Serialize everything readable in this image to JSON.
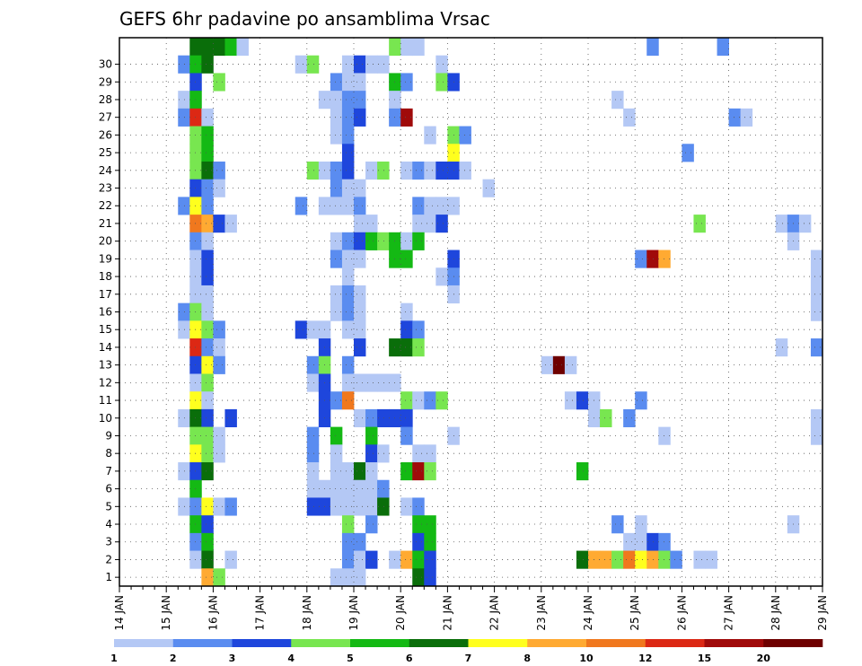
{
  "chart_data": {
    "type": "heatmap",
    "title": "GEFS 6hr padavine po ansamblima Vrsac",
    "xlabel": "",
    "ylabel": "",
    "x_unit": "6-hour step",
    "x_range": [
      0,
      60
    ],
    "x_ticks": [
      {
        "label": "14 JAN",
        "x": 0
      },
      {
        "label": "15 JAN",
        "x": 4
      },
      {
        "label": "16 JAN",
        "x": 8
      },
      {
        "label": "17 JAN",
        "x": 12
      },
      {
        "label": "18 JAN",
        "x": 16
      },
      {
        "label": "19 JAN",
        "x": 20
      },
      {
        "label": "20 JAN",
        "x": 24
      },
      {
        "label": "21 JAN",
        "x": 28
      },
      {
        "label": "22 JAN",
        "x": 32
      },
      {
        "label": "23 JAN",
        "x": 36
      },
      {
        "label": "24 JAN",
        "x": 40
      },
      {
        "label": "25 JAN",
        "x": 44
      },
      {
        "label": "26 JAN",
        "x": 48
      },
      {
        "label": "27 JAN",
        "x": 52
      },
      {
        "label": "28 JAN",
        "x": 56
      },
      {
        "label": "29 JAN",
        "x": 60
      }
    ],
    "y_ticks": [
      "1",
      "2",
      "3",
      "4",
      "5",
      "6",
      "7",
      "8",
      "9",
      "10",
      "11",
      "12",
      "13",
      "14",
      "15",
      "16",
      "17",
      "18",
      "19",
      "20",
      "21",
      "22",
      "23",
      "24",
      "25",
      "26",
      "27",
      "28",
      "29",
      "30"
    ],
    "grid": true,
    "legend": "bottom",
    "colorbar": {
      "levels": [
        "1",
        "2",
        "3",
        "4",
        "5",
        "6",
        "7",
        "8",
        "10",
        "12",
        "15",
        "20"
      ],
      "colors": [
        "#b4c8f5",
        "#5a8cf0",
        "#1e46dc",
        "#78e650",
        "#14b914",
        "#0a6e0a",
        "#ffff1e",
        "#ffaa32",
        "#f0781e",
        "#dc2814",
        "#a00a0a",
        "#6e0000"
      ]
    },
    "cells": [
      [
        6,
        30,
        5
      ],
      [
        7,
        30,
        5
      ],
      [
        8,
        30,
        5
      ],
      [
        9,
        30,
        4
      ],
      [
        10,
        30,
        0
      ],
      [
        23,
        30,
        3
      ],
      [
        24,
        30,
        0
      ],
      [
        25,
        30,
        0
      ],
      [
        45,
        30,
        1
      ],
      [
        51,
        30,
        1
      ],
      [
        5,
        29,
        1
      ],
      [
        6,
        29,
        4
      ],
      [
        7,
        29,
        5
      ],
      [
        15,
        29,
        0
      ],
      [
        16,
        29,
        3
      ],
      [
        19,
        29,
        0
      ],
      [
        20,
        29,
        2
      ],
      [
        21,
        29,
        0
      ],
      [
        22,
        29,
        0
      ],
      [
        27,
        29,
        0
      ],
      [
        6,
        28,
        2
      ],
      [
        8,
        28,
        3
      ],
      [
        18,
        28,
        1
      ],
      [
        19,
        28,
        0
      ],
      [
        20,
        28,
        0
      ],
      [
        23,
        28,
        4
      ],
      [
        24,
        28,
        1
      ],
      [
        27,
        28,
        3
      ],
      [
        28,
        28,
        2
      ],
      [
        5,
        27,
        0
      ],
      [
        6,
        27,
        4
      ],
      [
        17,
        27,
        0
      ],
      [
        18,
        27,
        0
      ],
      [
        19,
        27,
        1
      ],
      [
        20,
        27,
        1
      ],
      [
        23,
        27,
        0
      ],
      [
        42,
        27,
        0
      ],
      [
        5,
        26,
        1
      ],
      [
        6,
        26,
        9
      ],
      [
        7,
        26,
        0
      ],
      [
        18,
        26,
        0
      ],
      [
        19,
        26,
        1
      ],
      [
        20,
        26,
        2
      ],
      [
        23,
        26,
        1
      ],
      [
        24,
        26,
        10
      ],
      [
        43,
        26,
        0
      ],
      [
        52,
        26,
        1
      ],
      [
        53,
        26,
        0
      ],
      [
        6,
        25,
        3
      ],
      [
        7,
        25,
        4
      ],
      [
        18,
        25,
        0
      ],
      [
        19,
        25,
        1
      ],
      [
        26,
        25,
        0
      ],
      [
        28,
        25,
        3
      ],
      [
        29,
        25,
        1
      ],
      [
        6,
        24,
        3
      ],
      [
        7,
        24,
        4
      ],
      [
        19,
        24,
        2
      ],
      [
        28,
        24,
        6
      ],
      [
        48,
        24,
        1
      ],
      [
        6,
        23,
        3
      ],
      [
        7,
        23,
        5
      ],
      [
        8,
        23,
        1
      ],
      [
        16,
        23,
        3
      ],
      [
        17,
        23,
        0
      ],
      [
        18,
        23,
        1
      ],
      [
        19,
        23,
        2
      ],
      [
        21,
        23,
        0
      ],
      [
        22,
        23,
        3
      ],
      [
        24,
        23,
        0
      ],
      [
        25,
        23,
        1
      ],
      [
        26,
        23,
        0
      ],
      [
        27,
        23,
        2
      ],
      [
        28,
        23,
        2
      ],
      [
        29,
        23,
        0
      ],
      [
        6,
        22,
        2
      ],
      [
        7,
        22,
        1
      ],
      [
        8,
        22,
        0
      ],
      [
        18,
        22,
        1
      ],
      [
        19,
        22,
        0
      ],
      [
        20,
        22,
        0
      ],
      [
        31,
        22,
        0
      ],
      [
        5,
        21,
        1
      ],
      [
        6,
        21,
        6
      ],
      [
        7,
        21,
        1
      ],
      [
        15,
        21,
        1
      ],
      [
        17,
        21,
        0
      ],
      [
        18,
        21,
        0
      ],
      [
        19,
        21,
        0
      ],
      [
        20,
        21,
        1
      ],
      [
        25,
        21,
        1
      ],
      [
        26,
        21,
        0
      ],
      [
        27,
        21,
        0
      ],
      [
        28,
        21,
        0
      ],
      [
        6,
        20,
        8
      ],
      [
        7,
        20,
        7
      ],
      [
        8,
        20,
        2
      ],
      [
        9,
        20,
        0
      ],
      [
        20,
        20,
        0
      ],
      [
        21,
        20,
        0
      ],
      [
        25,
        20,
        0
      ],
      [
        26,
        20,
        0
      ],
      [
        27,
        20,
        2
      ],
      [
        49,
        20,
        3
      ],
      [
        56,
        20,
        0
      ],
      [
        57,
        20,
        1
      ],
      [
        58,
        20,
        0
      ],
      [
        6,
        19,
        1
      ],
      [
        7,
        19,
        0
      ],
      [
        18,
        19,
        0
      ],
      [
        19,
        19,
        1
      ],
      [
        20,
        19,
        2
      ],
      [
        21,
        19,
        4
      ],
      [
        22,
        19,
        3
      ],
      [
        23,
        19,
        4
      ],
      [
        24,
        19,
        0
      ],
      [
        25,
        19,
        4
      ],
      [
        57,
        19,
        0
      ],
      [
        6,
        18,
        0
      ],
      [
        7,
        18,
        2
      ],
      [
        18,
        18,
        1
      ],
      [
        19,
        18,
        0
      ],
      [
        20,
        18,
        0
      ],
      [
        23,
        18,
        4
      ],
      [
        24,
        18,
        4
      ],
      [
        28,
        18,
        2
      ],
      [
        44,
        18,
        1
      ],
      [
        45,
        18,
        10
      ],
      [
        46,
        18,
        7
      ],
      [
        59,
        18,
        0
      ],
      [
        6,
        17,
        0
      ],
      [
        7,
        17,
        2
      ],
      [
        19,
        17,
        0
      ],
      [
        27,
        17,
        0
      ],
      [
        28,
        17,
        1
      ],
      [
        59,
        17,
        0
      ],
      [
        6,
        16,
        0
      ],
      [
        7,
        16,
        0
      ],
      [
        18,
        16,
        0
      ],
      [
        19,
        16,
        1
      ],
      [
        20,
        16,
        0
      ],
      [
        28,
        16,
        0
      ],
      [
        59,
        16,
        0
      ],
      [
        5,
        15,
        1
      ],
      [
        6,
        15,
        3
      ],
      [
        7,
        15,
        0
      ],
      [
        18,
        15,
        0
      ],
      [
        19,
        15,
        1
      ],
      [
        20,
        15,
        0
      ],
      [
        24,
        15,
        0
      ],
      [
        59,
        15,
        0
      ],
      [
        5,
        14,
        0
      ],
      [
        6,
        14,
        6
      ],
      [
        7,
        14,
        3
      ],
      [
        8,
        14,
        1
      ],
      [
        15,
        14,
        2
      ],
      [
        16,
        14,
        0
      ],
      [
        17,
        14,
        0
      ],
      [
        19,
        14,
        0
      ],
      [
        20,
        14,
        0
      ],
      [
        24,
        14,
        2
      ],
      [
        25,
        14,
        1
      ],
      [
        6,
        13,
        9
      ],
      [
        7,
        13,
        1
      ],
      [
        8,
        13,
        0
      ],
      [
        17,
        13,
        2
      ],
      [
        20,
        13,
        2
      ],
      [
        23,
        13,
        5
      ],
      [
        24,
        13,
        5
      ],
      [
        25,
        13,
        3
      ],
      [
        56,
        13,
        0
      ],
      [
        59,
        13,
        1
      ],
      [
        6,
        12,
        2
      ],
      [
        7,
        12,
        6
      ],
      [
        8,
        12,
        1
      ],
      [
        16,
        12,
        1
      ],
      [
        17,
        12,
        3
      ],
      [
        19,
        12,
        1
      ],
      [
        36,
        12,
        0
      ],
      [
        37,
        12,
        11
      ],
      [
        38,
        12,
        0
      ],
      [
        6,
        11,
        0
      ],
      [
        7,
        11,
        3
      ],
      [
        16,
        11,
        0
      ],
      [
        17,
        11,
        2
      ],
      [
        19,
        11,
        0
      ],
      [
        20,
        11,
        0
      ],
      [
        21,
        11,
        0
      ],
      [
        22,
        11,
        0
      ],
      [
        23,
        11,
        0
      ],
      [
        6,
        10,
        6
      ],
      [
        7,
        10,
        0
      ],
      [
        17,
        10,
        2
      ],
      [
        18,
        10,
        1
      ],
      [
        19,
        10,
        8
      ],
      [
        24,
        10,
        3
      ],
      [
        25,
        10,
        0
      ],
      [
        26,
        10,
        1
      ],
      [
        27,
        10,
        3
      ],
      [
        38,
        10,
        0
      ],
      [
        39,
        10,
        2
      ],
      [
        40,
        10,
        0
      ],
      [
        44,
        10,
        1
      ],
      [
        5,
        9,
        0
      ],
      [
        6,
        9,
        5
      ],
      [
        7,
        9,
        2
      ],
      [
        9,
        9,
        2
      ],
      [
        17,
        9,
        2
      ],
      [
        20,
        9,
        0
      ],
      [
        21,
        9,
        1
      ],
      [
        22,
        9,
        2
      ],
      [
        23,
        9,
        2
      ],
      [
        24,
        9,
        2
      ],
      [
        40,
        9,
        0
      ],
      [
        41,
        9,
        3
      ],
      [
        43,
        9,
        1
      ],
      [
        59,
        9,
        0
      ],
      [
        6,
        8,
        3
      ],
      [
        7,
        8,
        3
      ],
      [
        8,
        8,
        0
      ],
      [
        16,
        8,
        1
      ],
      [
        18,
        8,
        4
      ],
      [
        21,
        8,
        4
      ],
      [
        24,
        8,
        1
      ],
      [
        28,
        8,
        0
      ],
      [
        46,
        8,
        0
      ],
      [
        59,
        8,
        0
      ],
      [
        6,
        7,
        6
      ],
      [
        7,
        7,
        3
      ],
      [
        8,
        7,
        0
      ],
      [
        16,
        7,
        1
      ],
      [
        18,
        7,
        0
      ],
      [
        21,
        7,
        2
      ],
      [
        22,
        7,
        0
      ],
      [
        25,
        7,
        0
      ],
      [
        26,
        7,
        0
      ],
      [
        5,
        6,
        0
      ],
      [
        6,
        6,
        2
      ],
      [
        7,
        6,
        5
      ],
      [
        16,
        6,
        0
      ],
      [
        18,
        6,
        0
      ],
      [
        19,
        6,
        0
      ],
      [
        20,
        6,
        5
      ],
      [
        21,
        6,
        0
      ],
      [
        24,
        6,
        4
      ],
      [
        25,
        6,
        10
      ],
      [
        26,
        6,
        3
      ],
      [
        39,
        6,
        4
      ],
      [
        6,
        5,
        4
      ],
      [
        16,
        5,
        0
      ],
      [
        17,
        5,
        0
      ],
      [
        18,
        5,
        0
      ],
      [
        19,
        5,
        0
      ],
      [
        20,
        5,
        0
      ],
      [
        21,
        5,
        0
      ],
      [
        22,
        5,
        1
      ],
      [
        5,
        4,
        0
      ],
      [
        6,
        4,
        1
      ],
      [
        7,
        4,
        6
      ],
      [
        8,
        4,
        0
      ],
      [
        9,
        4,
        1
      ],
      [
        16,
        4,
        2
      ],
      [
        17,
        4,
        2
      ],
      [
        18,
        4,
        0
      ],
      [
        19,
        4,
        0
      ],
      [
        20,
        4,
        0
      ],
      [
        21,
        4,
        0
      ],
      [
        22,
        4,
        5
      ],
      [
        24,
        4,
        0
      ],
      [
        25,
        4,
        1
      ],
      [
        6,
        3,
        4
      ],
      [
        7,
        3,
        2
      ],
      [
        19,
        3,
        3
      ],
      [
        21,
        3,
        1
      ],
      [
        25,
        3,
        4
      ],
      [
        26,
        3,
        4
      ],
      [
        42,
        3,
        1
      ],
      [
        44,
        3,
        0
      ],
      [
        57,
        3,
        0
      ],
      [
        6,
        2,
        1
      ],
      [
        7,
        2,
        4
      ],
      [
        19,
        2,
        1
      ],
      [
        20,
        2,
        1
      ],
      [
        25,
        2,
        2
      ],
      [
        26,
        2,
        4
      ],
      [
        43,
        2,
        0
      ],
      [
        44,
        2,
        0
      ],
      [
        45,
        2,
        2
      ],
      [
        46,
        2,
        1
      ],
      [
        6,
        1,
        0
      ],
      [
        7,
        1,
        5
      ],
      [
        9,
        1,
        0
      ],
      [
        19,
        1,
        1
      ],
      [
        20,
        1,
        0
      ],
      [
        21,
        1,
        2
      ],
      [
        23,
        1,
        0
      ],
      [
        24,
        1,
        7
      ],
      [
        25,
        1,
        4
      ],
      [
        26,
        1,
        2
      ],
      [
        39,
        1,
        5
      ],
      [
        40,
        1,
        7
      ],
      [
        41,
        1,
        7
      ],
      [
        42,
        1,
        3
      ],
      [
        43,
        1,
        8
      ],
      [
        44,
        1,
        6
      ],
      [
        45,
        1,
        7
      ],
      [
        46,
        1,
        3
      ],
      [
        47,
        1,
        1
      ],
      [
        49,
        1,
        0
      ],
      [
        50,
        1,
        0
      ],
      [
        7,
        0,
        7
      ],
      [
        8,
        0,
        3
      ],
      [
        18,
        0,
        0
      ],
      [
        19,
        0,
        0
      ],
      [
        20,
        0,
        0
      ],
      [
        25,
        0,
        5
      ],
      [
        26,
        0,
        2
      ]
    ]
  }
}
